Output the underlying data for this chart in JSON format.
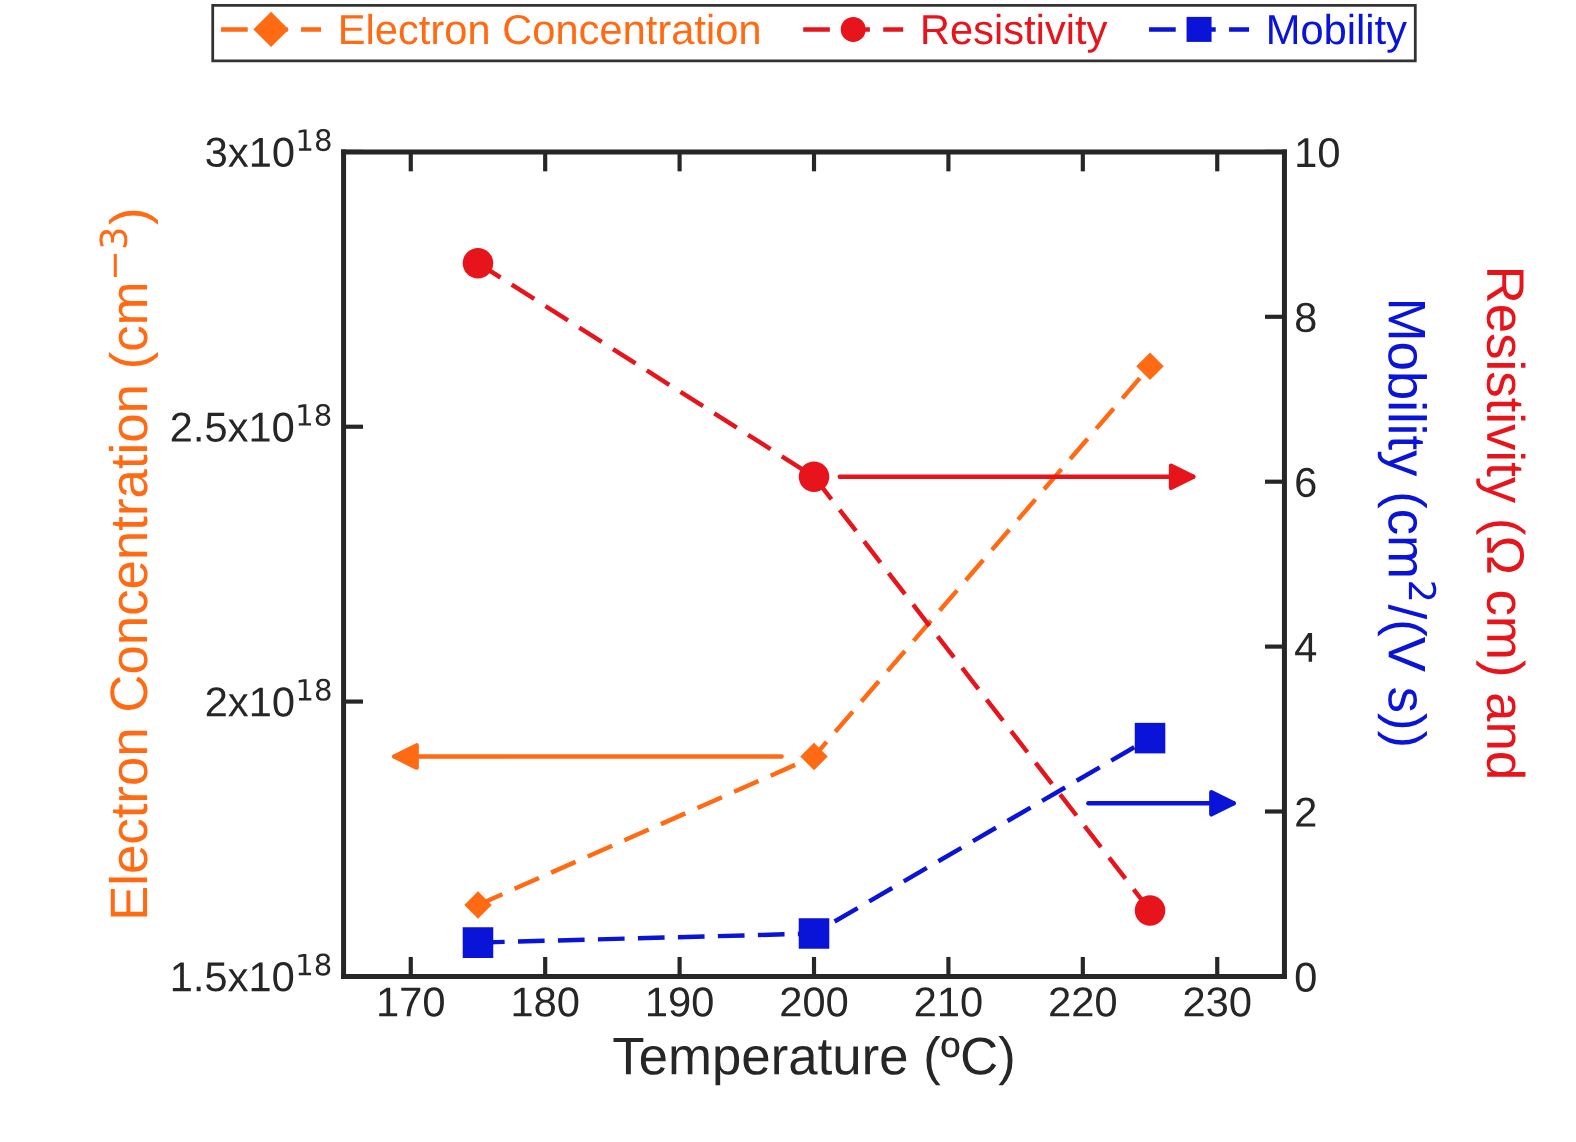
{
  "chart_data": {
    "type": "line",
    "xlabel": "Temperature (ºC)",
    "ylabel": "Electron Concentration (cm$^{−3}$)",
    "y2label": [
      "Resistivity (Ω cm) and",
      "Mobility (cm$^{2}$/(V s))"
    ],
    "x": [
      175,
      200,
      225
    ],
    "series": [
      {
        "name": "Electron Concentration",
        "color": "#ff6a13",
        "values": [
          1.63e+18,
          1.9e+18,
          2.61e+18
        ],
        "marker": "diamond",
        "line_style": "dashed"
      },
      {
        "name": "Resistivity",
        "color": "#e8141b",
        "values": [
          8.65,
          6.06,
          0.8
        ],
        "axis": "y2",
        "marker": "circle",
        "line_style": "dashed"
      },
      {
        "name": "Mobility",
        "color": "#0a14d8",
        "values": [
          0.41,
          0.52,
          2.89
        ],
        "axis": "y2",
        "marker": "square",
        "line_style": "dashed"
      }
    ],
    "xlim": [
      165,
      235
    ],
    "xticks": [
      170,
      180,
      190,
      200,
      210,
      220,
      230
    ],
    "ylim": [
      1.5e+18,
      3e+18
    ],
    "yticks": [
      {
        "value": 1.5e+18,
        "label": "1.5x10$^{18}$"
      },
      {
        "value": 2e+18,
        "label": "2x10$^{18}$"
      },
      {
        "value": 2.5e+18,
        "label": "2.5x10$^{18}$"
      },
      {
        "value": 3e+18,
        "label": "3x10$^{18}$"
      }
    ],
    "y2lim": [
      0,
      10
    ],
    "y2ticks": [
      0,
      2,
      4,
      6,
      8,
      10
    ],
    "grid": false,
    "legend": "top"
  }
}
